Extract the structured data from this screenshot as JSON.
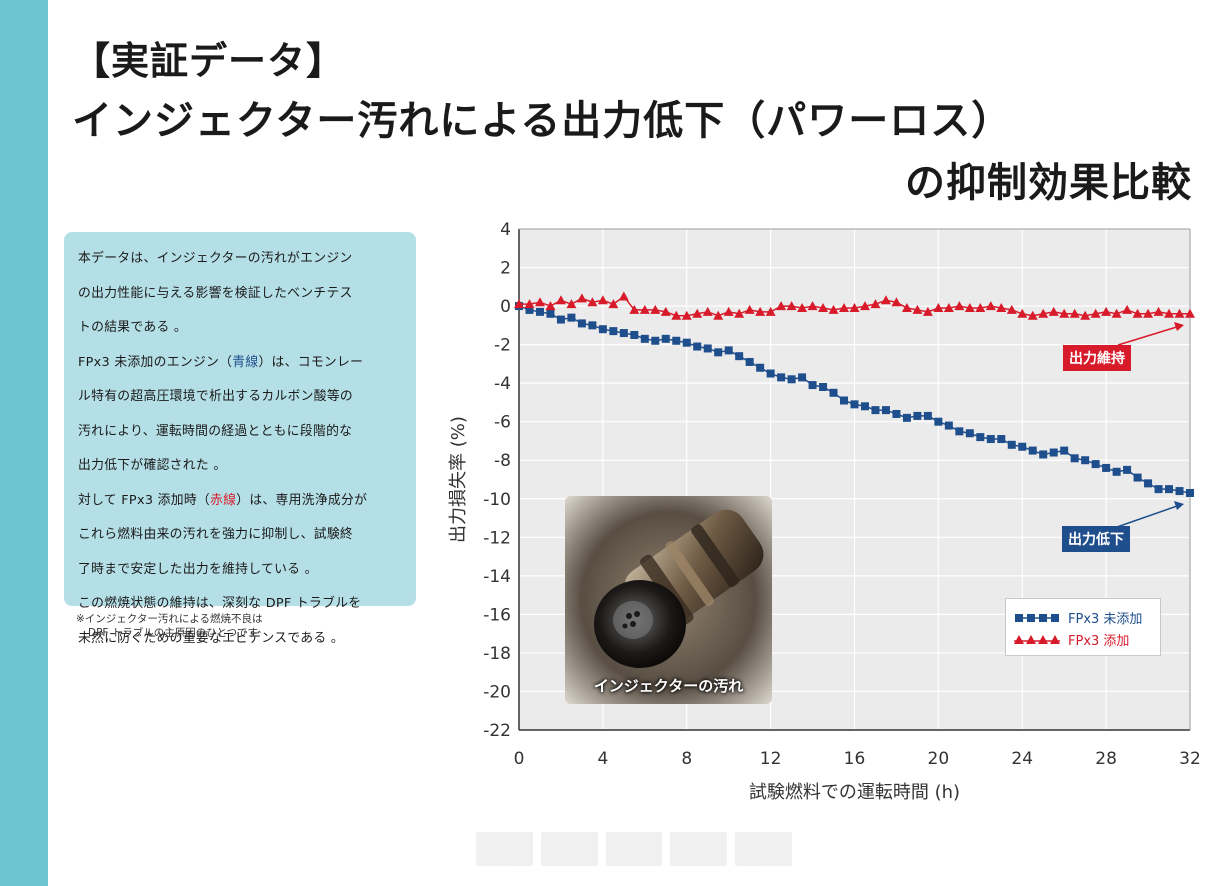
{
  "header": {
    "title_line1": "【実証データ】",
    "title_line2": "インジェクター汚れによる出力低下（パワーロス）",
    "title_line3": "の抑制効果比較"
  },
  "description": {
    "p1_l1": "本データは、インジェクターの汚れがエンジン",
    "p1_l2": "の出力性能に与える影響を検証したベンチテス",
    "p1_l3": "トの結果である 。",
    "p2_l1a": "FPx3 未添加のエンジン（",
    "p2_l1_blue": "青線",
    "p2_l1b": "）は、コモンレー",
    "p2_l2": "ル特有の超高圧環境で析出するカルボン酸等の",
    "p2_l3": "汚れにより、運転時間の経過とともに段階的な",
    "p2_l4": "出力低下が確認された 。",
    "p3_l1a": "対して FPx3 添加時（",
    "p3_l1_red": "赤線",
    "p3_l1b": "）は、専用洗浄成分が",
    "p3_l2": "これら燃料由来の汚れを強力に抑制し、試験終",
    "p3_l3": "了時まで安定した出力を維持している 。",
    "p4_l1": "この燃焼状態の維持は、深刻な DPF トラブルを",
    "p4_l2": "未然に防ぐための重要なエビデンスである 。",
    "note_l1": "※インジェクター汚れによる燃焼不良は",
    "note_l2": "DPF トラブルの主原因のひとつです"
  },
  "photo": {
    "caption": "インジェクターの汚れ"
  },
  "callouts": {
    "maintain": "出力維持",
    "decline": "出力低下"
  },
  "colors": {
    "accent_bar": "#6cc5d1",
    "text_box": "#b5dfe6",
    "blue_series": "#1f4e8c",
    "red_series": "#d81b2a"
  },
  "chart_data": {
    "type": "line",
    "title": "",
    "xlabel": "試験燃料での運転時間 (h)",
    "ylabel": "出力損失率 (%)",
    "xlim": [
      0,
      32
    ],
    "ylim": [
      -22,
      4
    ],
    "xticks": [
      0,
      4,
      8,
      12,
      16,
      20,
      24,
      28,
      32
    ],
    "yticks": [
      4,
      2,
      0,
      -2,
      -4,
      -6,
      -8,
      -10,
      -12,
      -14,
      -16,
      -18,
      -20,
      -22
    ],
    "grid": true,
    "legend_position": "bottom-right",
    "x": [
      0,
      0.5,
      1,
      1.5,
      2,
      2.5,
      3,
      3.5,
      4,
      4.5,
      5,
      5.5,
      6,
      6.5,
      7,
      7.5,
      8,
      8.5,
      9,
      9.5,
      10,
      10.5,
      11,
      11.5,
      12,
      12.5,
      13,
      13.5,
      14,
      14.5,
      15,
      15.5,
      16,
      16.5,
      17,
      17.5,
      18,
      18.5,
      19,
      19.5,
      20,
      20.5,
      21,
      21.5,
      22,
      22.5,
      23,
      23.5,
      24,
      24.5,
      25,
      25.5,
      26,
      26.5,
      27,
      27.5,
      28,
      28.5,
      29,
      29.5,
      30,
      30.5,
      31,
      31.5,
      32
    ],
    "series": [
      {
        "name": "FPx3 未添加",
        "marker": "square",
        "values": [
          0,
          -0.2,
          -0.3,
          -0.4,
          -0.7,
          -0.6,
          -0.9,
          -1.0,
          -1.2,
          -1.3,
          -1.4,
          -1.5,
          -1.7,
          -1.8,
          -1.7,
          -1.8,
          -1.9,
          -2.1,
          -2.2,
          -2.4,
          -2.3,
          -2.6,
          -2.9,
          -3.2,
          -3.5,
          -3.7,
          -3.8,
          -3.7,
          -4.1,
          -4.2,
          -4.5,
          -4.9,
          -5.1,
          -5.2,
          -5.4,
          -5.4,
          -5.6,
          -5.8,
          -5.7,
          -5.7,
          -6.0,
          -6.2,
          -6.5,
          -6.6,
          -6.8,
          -6.9,
          -6.9,
          -7.2,
          -7.3,
          -7.5,
          -7.7,
          -7.6,
          -7.5,
          -7.9,
          -8.0,
          -8.2,
          -8.4,
          -8.6,
          -8.5,
          -8.9,
          -9.2,
          -9.5,
          -9.5,
          -9.6,
          -9.7
        ]
      },
      {
        "name": "FPx3 添加",
        "marker": "triangle",
        "values": [
          0.1,
          0.1,
          0.2,
          0.0,
          0.3,
          0.1,
          0.4,
          0.2,
          0.3,
          0.1,
          0.5,
          -0.2,
          -0.2,
          -0.2,
          -0.3,
          -0.5,
          -0.5,
          -0.4,
          -0.3,
          -0.5,
          -0.3,
          -0.4,
          -0.2,
          -0.3,
          -0.3,
          0.0,
          0.0,
          -0.1,
          0.0,
          -0.1,
          -0.2,
          -0.1,
          -0.1,
          0.0,
          0.1,
          0.3,
          0.2,
          -0.1,
          -0.2,
          -0.3,
          -0.1,
          -0.1,
          0.0,
          -0.1,
          -0.1,
          0.0,
          -0.1,
          -0.2,
          -0.4,
          -0.5,
          -0.4,
          -0.3,
          -0.4,
          -0.4,
          -0.5,
          -0.4,
          -0.3,
          -0.4,
          -0.2,
          -0.4,
          -0.4,
          -0.3,
          -0.4,
          -0.4,
          -0.4
        ]
      }
    ]
  }
}
